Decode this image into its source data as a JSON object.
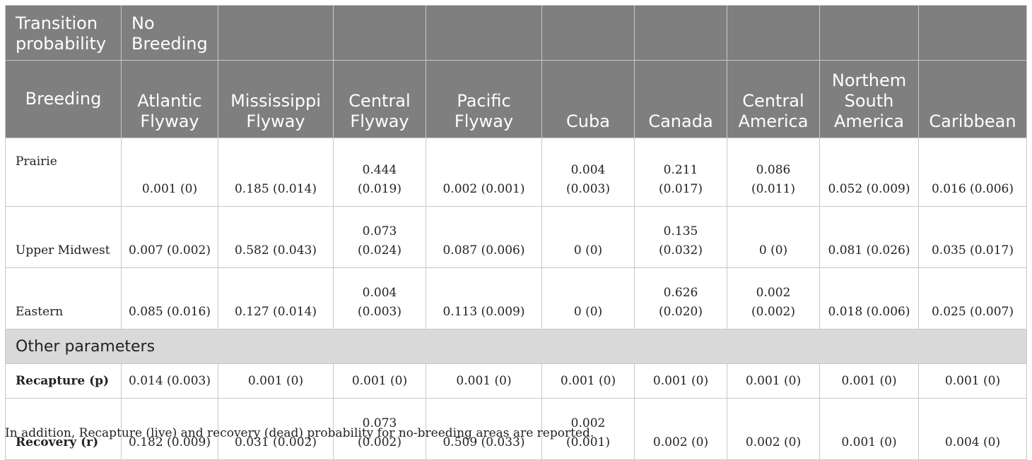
{
  "table": {
    "header_row1": [
      "Transition\nprobability",
      "No\nBreeding"
    ],
    "header_row2": [
      "Breeding",
      "Atlantic\nFlyway",
      "Mississippi\nFlyway",
      "Central\nFlyway",
      "Pacific\nFlyway",
      "Cuba",
      "Canada",
      "Central\nAmerica",
      "Northem\nSouth\nAmerica",
      "Caribbean"
    ],
    "rows": [
      {
        "label": "Prairie",
        "values": [
          "0.001 (0)",
          "0.185 (0.014)",
          "0.444\n(0.019)",
          "0.002 (0.001)",
          "0.004\n(0.003)",
          "0.211\n(0.017)",
          "0.086\n(0.011)",
          "0.052 (0.009)",
          "0.016 (0.006)"
        ]
      },
      {
        "label": "Upper Midwest",
        "values": [
          "0.007 (0.002)",
          "0.582 (0.043)",
          "0.073\n(0.024)",
          "0.087 (0.006)",
          "0 (0)",
          "0.135\n(0.032)",
          "0 (0)",
          "0.081 (0.026)",
          "0.035 (0.017)"
        ]
      },
      {
        "label": "Eastern",
        "values": [
          "0.085 (0.016)",
          "0.127 (0.014)",
          "0.004\n(0.003)",
          "0.113 (0.009)",
          "0 (0)",
          "0.626\n(0.020)",
          "0.002\n(0.002)",
          "0.018 (0.006)",
          "0.025 (0.007)"
        ]
      }
    ],
    "section_label": "Other parameters",
    "param_rows": [
      {
        "label": "Recapture (p)",
        "values": [
          "0.014 (0.003)",
          "0.001 (0)",
          "0.001 (0)",
          "0.001 (0)",
          "0.001 (0)",
          "0.001 (0)",
          "0.001 (0)",
          "0.001 (0)",
          "0.001 (0)"
        ]
      },
      {
        "label": "Recovery (r)",
        "values": [
          "0.182 (0.009)",
          "0.031 (0.002)",
          "0.073\n(0.002)",
          "0.509 (0.033)",
          "0.002\n(0.001)",
          "0.002 (0)",
          "0.002 (0)",
          "0.001 (0)",
          "0.004 (0)"
        ]
      }
    ]
  },
  "footnote": "In addition, Recapture (live) and recovery (dead) probability for no-breeding areas are reported.",
  "colors": {
    "header_bg": "#7f7f7f",
    "section_bg": "#d9d9d9",
    "border": "#c8c8c8"
  }
}
